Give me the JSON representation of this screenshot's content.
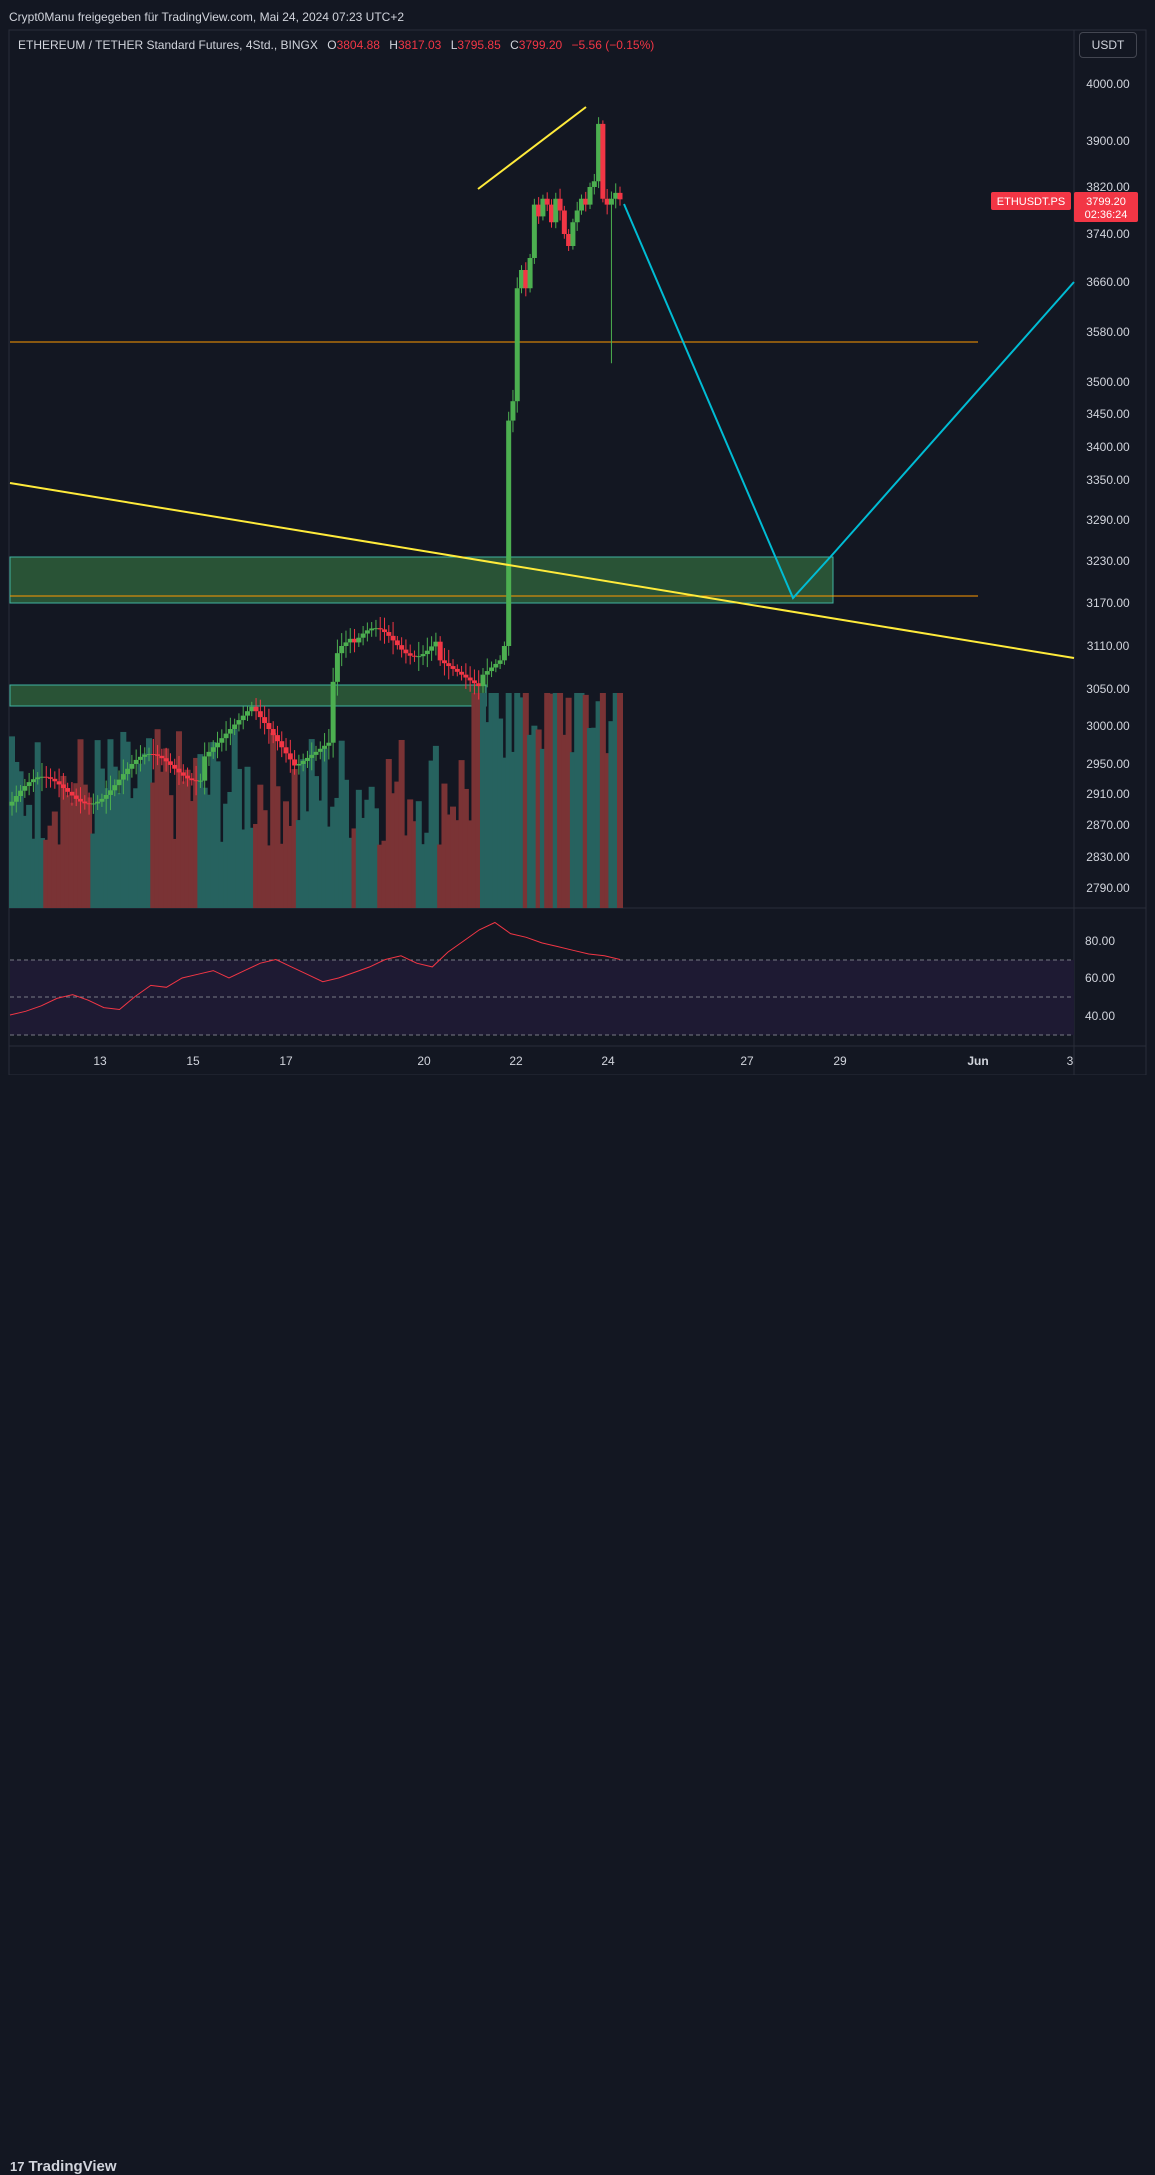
{
  "header": {
    "shared_text": "Crypt0Manu freigegeben für TradingView.com, Mai 24, 2024 07:23 UTC+2"
  },
  "legend": {
    "symbol": "ETHEREUM / TETHER Standard Futures, 4Std., BINGX",
    "o_label": "O",
    "o_value": "3804.88",
    "h_label": "H",
    "h_value": "3817.03",
    "l_label": "L",
    "l_value": "3795.85",
    "c_label": "C",
    "c_value": "3799.20",
    "change": "−5.56 (−0.15%)"
  },
  "currency_button": "USDT",
  "price_badge": {
    "symbol": "ETHUSDT.PS",
    "price": "3799.20",
    "countdown": "02:36:24"
  },
  "footer": {
    "logo_text": "TradingView",
    "logo_mark": "17"
  },
  "colors": {
    "up": "#4caf50",
    "down": "#f23645",
    "vol_up": "#26625f",
    "vol_down": "#7a3335",
    "trend": "#ffeb3b",
    "forecast": "#00bcd4",
    "level": "#ff9800",
    "zone": "#2e5e3a",
    "rsi": "#f23645"
  },
  "chart_data": [
    {
      "type": "candlestick",
      "title": "",
      "y_axis": {
        "ticks": [
          "4000.00",
          "3900.00",
          "3820.00",
          "3740.00",
          "3660.00",
          "3580.00",
          "3500.00",
          "3450.00",
          "3400.00",
          "3350.00",
          "3290.00",
          "3230.00",
          "3170.00",
          "3110.00",
          "3050.00",
          "3000.00",
          "2950.00",
          "2910.00",
          "2870.00",
          "2830.00",
          "2790.00"
        ],
        "scale": "log-like"
      },
      "x_axis": {
        "ticks": [
          "13",
          "15",
          "17",
          "20",
          "22",
          "24",
          "27",
          "29",
          "Jun",
          "3"
        ]
      },
      "ohlc_approx": [
        {
          "x": "May 21",
          "o": 3200,
          "h": 3240,
          "l": 3150,
          "c": 3460
        },
        {
          "x": "May 21",
          "o": 3460,
          "h": 3660,
          "l": 3440,
          "c": 3650
        },
        {
          "x": "May 22",
          "o": 3700,
          "h": 3820,
          "l": 3680,
          "c": 3780
        },
        {
          "x": "May 23",
          "o": 3760,
          "h": 3950,
          "l": 3560,
          "c": 3930
        },
        {
          "x": "May 24",
          "o": 3804.88,
          "h": 3817.03,
          "l": 3795.85,
          "c": 3799.2
        }
      ],
      "horizontal_levels": [
        3570,
        3180
      ],
      "zones": [
        {
          "from": 3170,
          "to": 3235
        },
        {
          "from": 3028,
          "to": 3055
        }
      ],
      "trendlines": [
        {
          "from": {
            "x": "May 11",
            "y": 3345
          },
          "to": {
            "x": "Jun 3",
            "y": 3098
          }
        },
        {
          "from": {
            "x": "May 21",
            "y": 3820
          },
          "to": {
            "x": "May 23",
            "y": 3975
          }
        }
      ],
      "forecast_path": [
        {
          "x": "May 24",
          "y": 3790
        },
        {
          "x": "May 28",
          "y": 3180
        },
        {
          "x": "Jun 3",
          "y": 3660
        }
      ],
      "last_price": 3799.2
    },
    {
      "type": "line",
      "title": "",
      "series": [
        {
          "name": "",
          "values": [
            40,
            42,
            45,
            49,
            51,
            48,
            44,
            43,
            50,
            56,
            55,
            60,
            62,
            64,
            60,
            64,
            68,
            70,
            66,
            62,
            58,
            60,
            63,
            66,
            70,
            72,
            68,
            66,
            74,
            80,
            86,
            90,
            84,
            82,
            79,
            77,
            75,
            73,
            72,
            70
          ]
        }
      ],
      "y_axis": {
        "ticks": [
          "80.00",
          "60.00",
          "40.00"
        ],
        "band": [
          30,
          70
        ]
      }
    }
  ]
}
